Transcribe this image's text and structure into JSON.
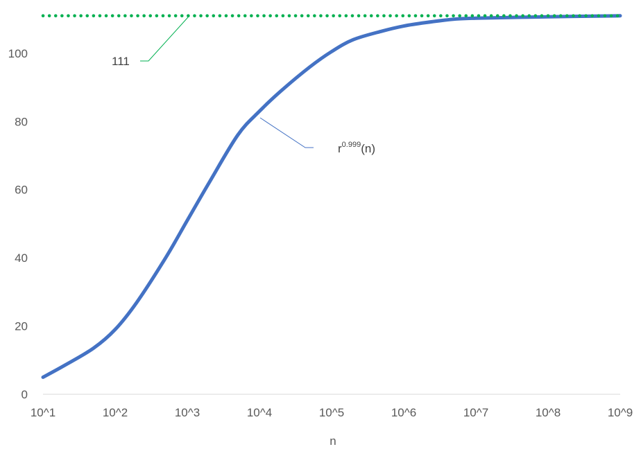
{
  "chart_data": {
    "type": "line",
    "title": "",
    "xlabel": "n",
    "ylabel": "",
    "x_scale": "log10",
    "x_ticks": [
      "10^1",
      "10^2",
      "10^3",
      "10^4",
      "10^5",
      "10^6",
      "10^7",
      "10^8",
      "10^9"
    ],
    "y_ticks": [
      "0",
      "20",
      "40",
      "60",
      "80",
      "100"
    ],
    "ylim": [
      0,
      114
    ],
    "grid": false,
    "series": [
      {
        "color": "#4472C4",
        "style": "solid",
        "x": [
          10,
          20,
          50,
          100,
          200,
          500,
          1000,
          2000,
          5000,
          10000,
          20000,
          50000,
          100000,
          200000,
          500000,
          1000000,
          2000000,
          5000000,
          10000000,
          100000000,
          1000000000
        ],
        "y": [
          5,
          8.5,
          13.5,
          19,
          27,
          40,
          51,
          62,
          76,
          83,
          89,
          96,
          100.5,
          104,
          106.5,
          108,
          109,
          110,
          110.3,
          110.7,
          111
        ]
      },
      {
        "color": "#00B050",
        "style": "dotted",
        "x": [
          10,
          1000000000
        ],
        "y": [
          111,
          111
        ]
      }
    ],
    "annotations": [
      {
        "id": "asymptote-label",
        "text": "111",
        "series_index": 1
      },
      {
        "id": "curve-label",
        "base": "r",
        "sup": "0.999",
        "suffix": "(n)",
        "series_index": 0
      }
    ]
  }
}
